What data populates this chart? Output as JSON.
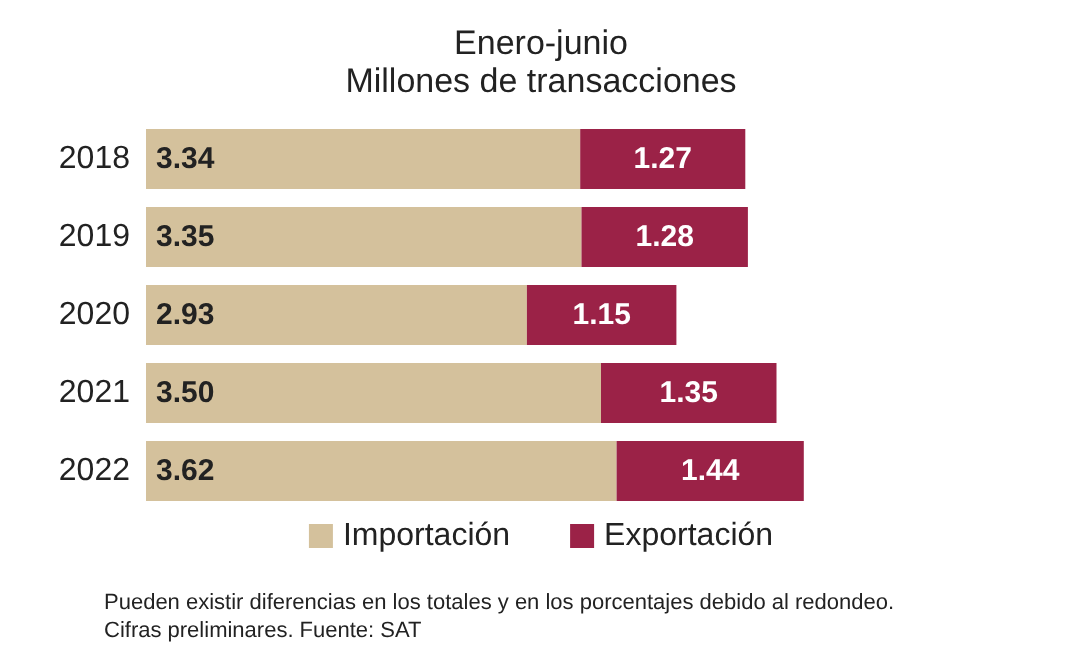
{
  "chart_data": {
    "type": "bar",
    "orientation": "horizontal",
    "stacked": true,
    "title": "Enero-junio",
    "subtitle": "Millones de transacciones",
    "categories": [
      "2018",
      "2019",
      "2020",
      "2021",
      "2022"
    ],
    "series": [
      {
        "name": "Importación",
        "color": "#d4c19c",
        "values": [
          3.34,
          3.35,
          2.93,
          3.5,
          3.62
        ],
        "value_labels": [
          "3.34",
          "3.35",
          "2.93",
          "3.50",
          "3.62"
        ]
      },
      {
        "name": "Exportación",
        "color": "#9b2247",
        "values": [
          1.27,
          1.28,
          1.15,
          1.35,
          1.44
        ],
        "value_labels": [
          "1.27",
          "1.28",
          "1.15",
          "1.35",
          "1.44"
        ]
      }
    ],
    "legend": "bottom",
    "annotations": [
      "Pueden existir diferencias en los totales y en los porcentajes debido al redondeo.",
      "Cifras preliminares. Fuente: SAT"
    ]
  }
}
